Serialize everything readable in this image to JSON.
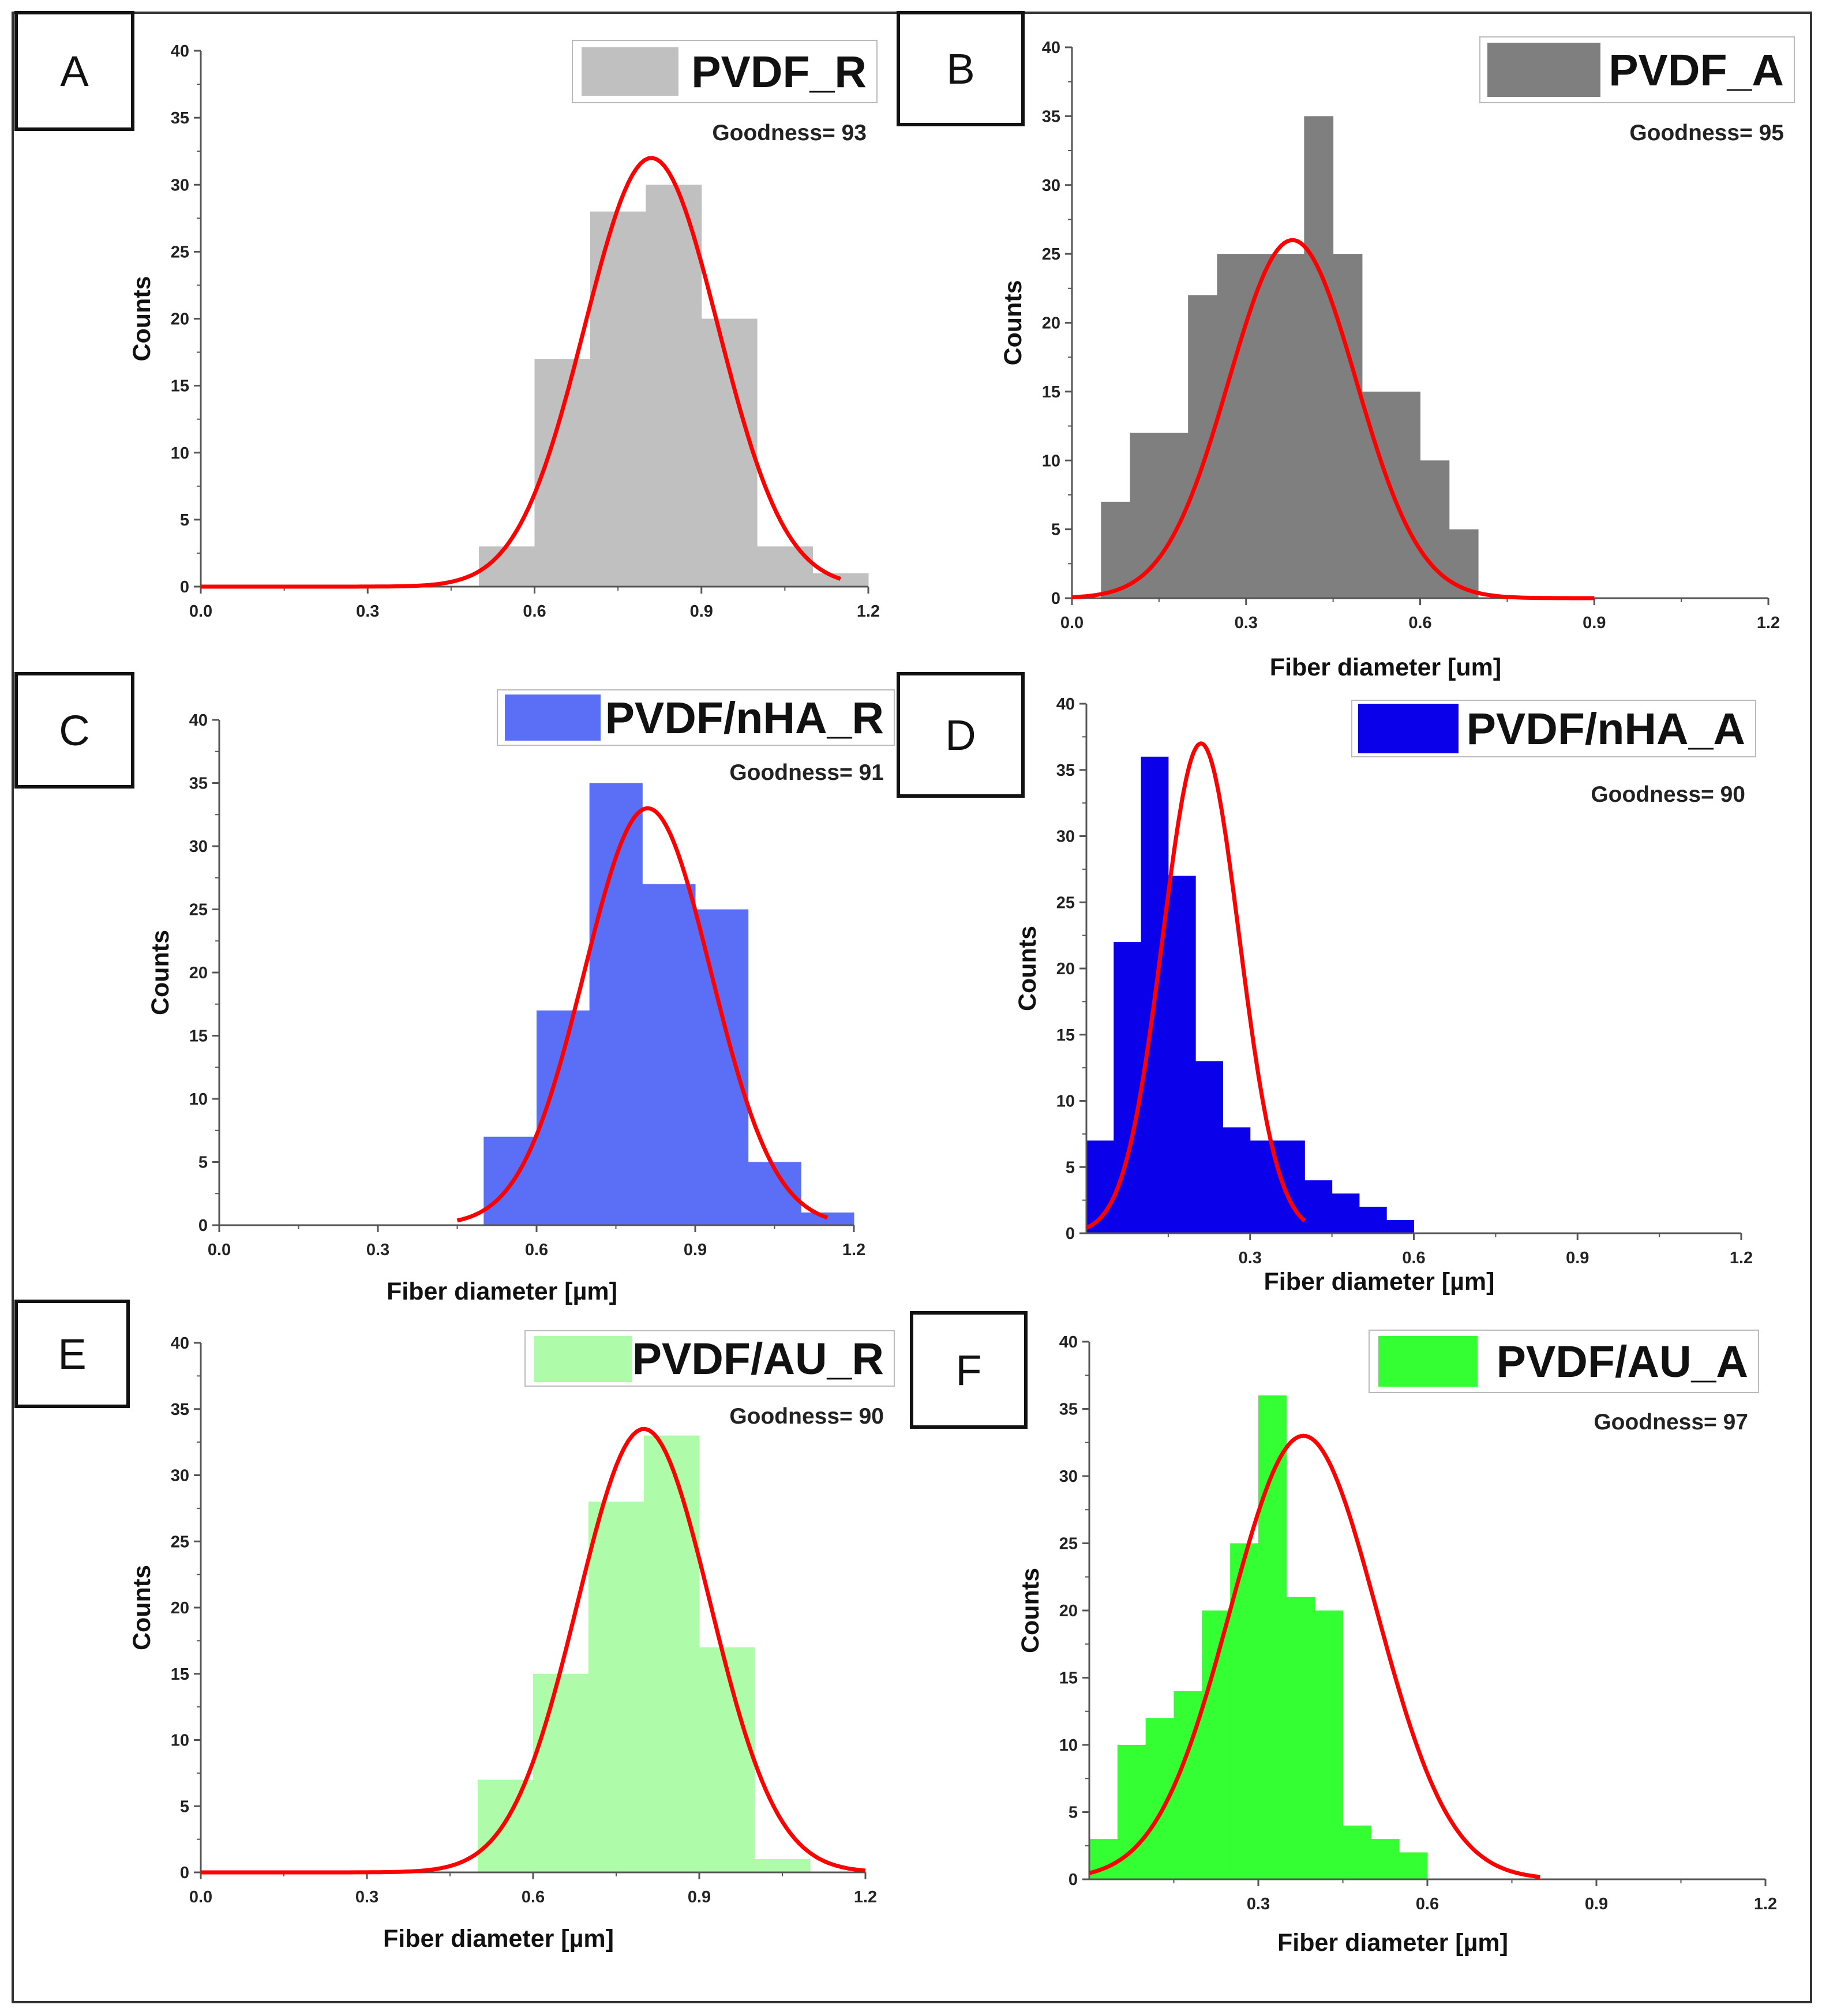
{
  "chart_data": [
    {
      "type": "bar",
      "panel_label": "A",
      "legend": {
        "label": "PVDF_R",
        "placement": "top-right"
      },
      "goodness": "Goodness= 93",
      "xlabel": "",
      "ylabel": "Counts",
      "xlim": [
        0,
        1.2
      ],
      "ylim": [
        0,
        40
      ],
      "x_ticks": [
        "0.0",
        "0.3",
        "0.6",
        "0.9",
        "1.2"
      ],
      "y_ticks": [
        "0",
        "5",
        "10",
        "15",
        "20",
        "25",
        "30",
        "35",
        "40"
      ],
      "bin_edges": [
        0.5,
        0.55,
        0.6,
        0.65,
        0.7,
        0.75,
        0.8,
        0.85,
        0.9,
        0.95,
        1.0,
        1.05,
        1.1,
        1.15,
        1.2
      ],
      "values": [
        3,
        3,
        17,
        17,
        28,
        28,
        30,
        30,
        20,
        20,
        3,
        3,
        1,
        1
      ],
      "fit": {
        "type": "gaussian",
        "amplitude": 32,
        "mean": 0.81,
        "sigma": 0.12,
        "x_range": [
          0,
          1.15
        ],
        "color": "#ff0000"
      },
      "colors": {
        "bar": "#c0c0c0"
      }
    },
    {
      "type": "bar",
      "panel_label": "B",
      "legend": {
        "label": "PVDF_A",
        "placement": "top-right"
      },
      "goodness": "Goodness= 95",
      "xlabel": "Fiber diameter [um]",
      "ylabel": "Counts",
      "xlim": [
        0,
        1.2
      ],
      "ylim": [
        0,
        40
      ],
      "x_ticks": [
        "0.0",
        "0.3",
        "0.6",
        "0.9",
        "1.2"
      ],
      "y_ticks": [
        "0",
        "5",
        "10",
        "15",
        "20",
        "25",
        "30",
        "35",
        "40"
      ],
      "bin_edges": [
        0.05,
        0.1,
        0.15,
        0.2,
        0.25,
        0.3,
        0.35,
        0.4,
        0.45,
        0.5,
        0.55,
        0.6,
        0.65,
        0.7
      ],
      "values": [
        7,
        12,
        12,
        22,
        25,
        25,
        25,
        35,
        25,
        15,
        15,
        10,
        5
      ],
      "fit": {
        "type": "gaussian",
        "amplitude": 26,
        "mean": 0.38,
        "sigma": 0.11,
        "x_range": [
          0,
          0.9
        ],
        "color": "#ff0000"
      },
      "colors": {
        "bar": "#7f7f7f"
      }
    },
    {
      "type": "bar",
      "panel_label": "C",
      "legend": {
        "label": "PVDF/nHA_R",
        "placement": "top-right"
      },
      "goodness": "Goodness= 91",
      "xlabel": "Fiber diameter [µm]",
      "ylabel": "Counts",
      "xlim": [
        0,
        1.2
      ],
      "ylim": [
        0,
        40
      ],
      "x_ticks": [
        "0.0",
        "0.3",
        "0.6",
        "0.9",
        "1.2"
      ],
      "y_ticks": [
        "0",
        "5",
        "10",
        "15",
        "20",
        "25",
        "30",
        "35",
        "40"
      ],
      "bin_edges": [
        0.5,
        0.6,
        0.7,
        0.8,
        0.9,
        1.0,
        1.1,
        1.2
      ],
      "values": [
        7,
        17,
        35,
        27,
        25,
        5,
        1
      ],
      "fit": {
        "type": "gaussian",
        "amplitude": 33,
        "mean": 0.81,
        "sigma": 0.12,
        "x_range": [
          0.45,
          1.15
        ],
        "color": "#ff0000"
      },
      "colors": {
        "bar": "#5b6ff6"
      }
    },
    {
      "type": "bar",
      "panel_label": "D",
      "legend": {
        "label": "PVDF/nHA_A",
        "placement": "top-right"
      },
      "goodness": "Goodness= 90",
      "xlabel": "Fiber diameter [µm]",
      "ylabel": "Counts",
      "xlim": [
        0,
        1.2
      ],
      "ylim": [
        0,
        40
      ],
      "x_ticks": [
        "0.3",
        "0.6",
        "0.9",
        "1.2"
      ],
      "y_ticks": [
        "0",
        "5",
        "10",
        "15",
        "20",
        "25",
        "30",
        "35",
        "40"
      ],
      "bin_edges": [
        0,
        0.05,
        0.1,
        0.15,
        0.2,
        0.25,
        0.3,
        0.35,
        0.4,
        0.45,
        0.5,
        0.55,
        0.6,
        0.65,
        0.7
      ],
      "values": [
        7,
        22,
        36,
        27,
        13,
        8,
        7,
        7,
        4,
        3,
        2,
        1,
        0,
        0
      ],
      "fit": {
        "type": "gaussian",
        "amplitude": 37,
        "mean": 0.21,
        "sigma": 0.07,
        "x_range": [
          0,
          0.4
        ],
        "color": "#ff0000"
      },
      "colors": {
        "bar": "#0a00ea"
      }
    },
    {
      "type": "bar",
      "panel_label": "E",
      "legend": {
        "label": "PVDF/AU_R",
        "placement": "top-right"
      },
      "goodness": "Goodness= 90",
      "xlabel": "Fiber diameter [µm]",
      "ylabel": "Counts",
      "xlim": [
        0,
        1.2
      ],
      "ylim": [
        0,
        40
      ],
      "x_ticks": [
        "0.0",
        "0.3",
        "0.6",
        "0.9",
        "1.2"
      ],
      "y_ticks": [
        "0",
        "5",
        "10",
        "15",
        "20",
        "25",
        "30",
        "35",
        "40"
      ],
      "bin_edges": [
        0.5,
        0.6,
        0.7,
        0.8,
        0.9,
        1.0,
        1.1
      ],
      "values": [
        7,
        15,
        28,
        33,
        17,
        1
      ],
      "fit": {
        "type": "gaussian",
        "amplitude": 33.5,
        "mean": 0.8,
        "sigma": 0.12,
        "x_range": [
          0,
          1.2
        ],
        "color": "#ff0000"
      },
      "colors": {
        "bar": "#aefcaa"
      }
    },
    {
      "type": "bar",
      "panel_label": "F",
      "legend": {
        "label": "PVDF/AU_A",
        "placement": "top-right"
      },
      "goodness": "Goodness= 97",
      "xlabel": "Fiber diameter [µm]",
      "ylabel": "Counts",
      "xlim": [
        0,
        1.2
      ],
      "ylim": [
        0,
        40
      ],
      "x_ticks": [
        "0.3",
        "0.6",
        "0.9",
        "1.2"
      ],
      "y_ticks": [
        "0",
        "5",
        "10",
        "15",
        "20",
        "25",
        "30",
        "35",
        "40"
      ],
      "bin_edges": [
        0,
        0.05,
        0.1,
        0.15,
        0.2,
        0.25,
        0.3,
        0.35,
        0.4,
        0.45,
        0.5,
        0.55,
        0.6,
        0.65,
        0.7
      ],
      "values": [
        3,
        10,
        12,
        14,
        20,
        25,
        36,
        21,
        20,
        4,
        3,
        2,
        0,
        0
      ],
      "fit": {
        "type": "gaussian",
        "amplitude": 33,
        "mean": 0.38,
        "sigma": 0.13,
        "x_range": [
          0,
          0.8
        ],
        "color": "#ff0000"
      },
      "colors": {
        "bar": "#33ff33"
      }
    }
  ]
}
